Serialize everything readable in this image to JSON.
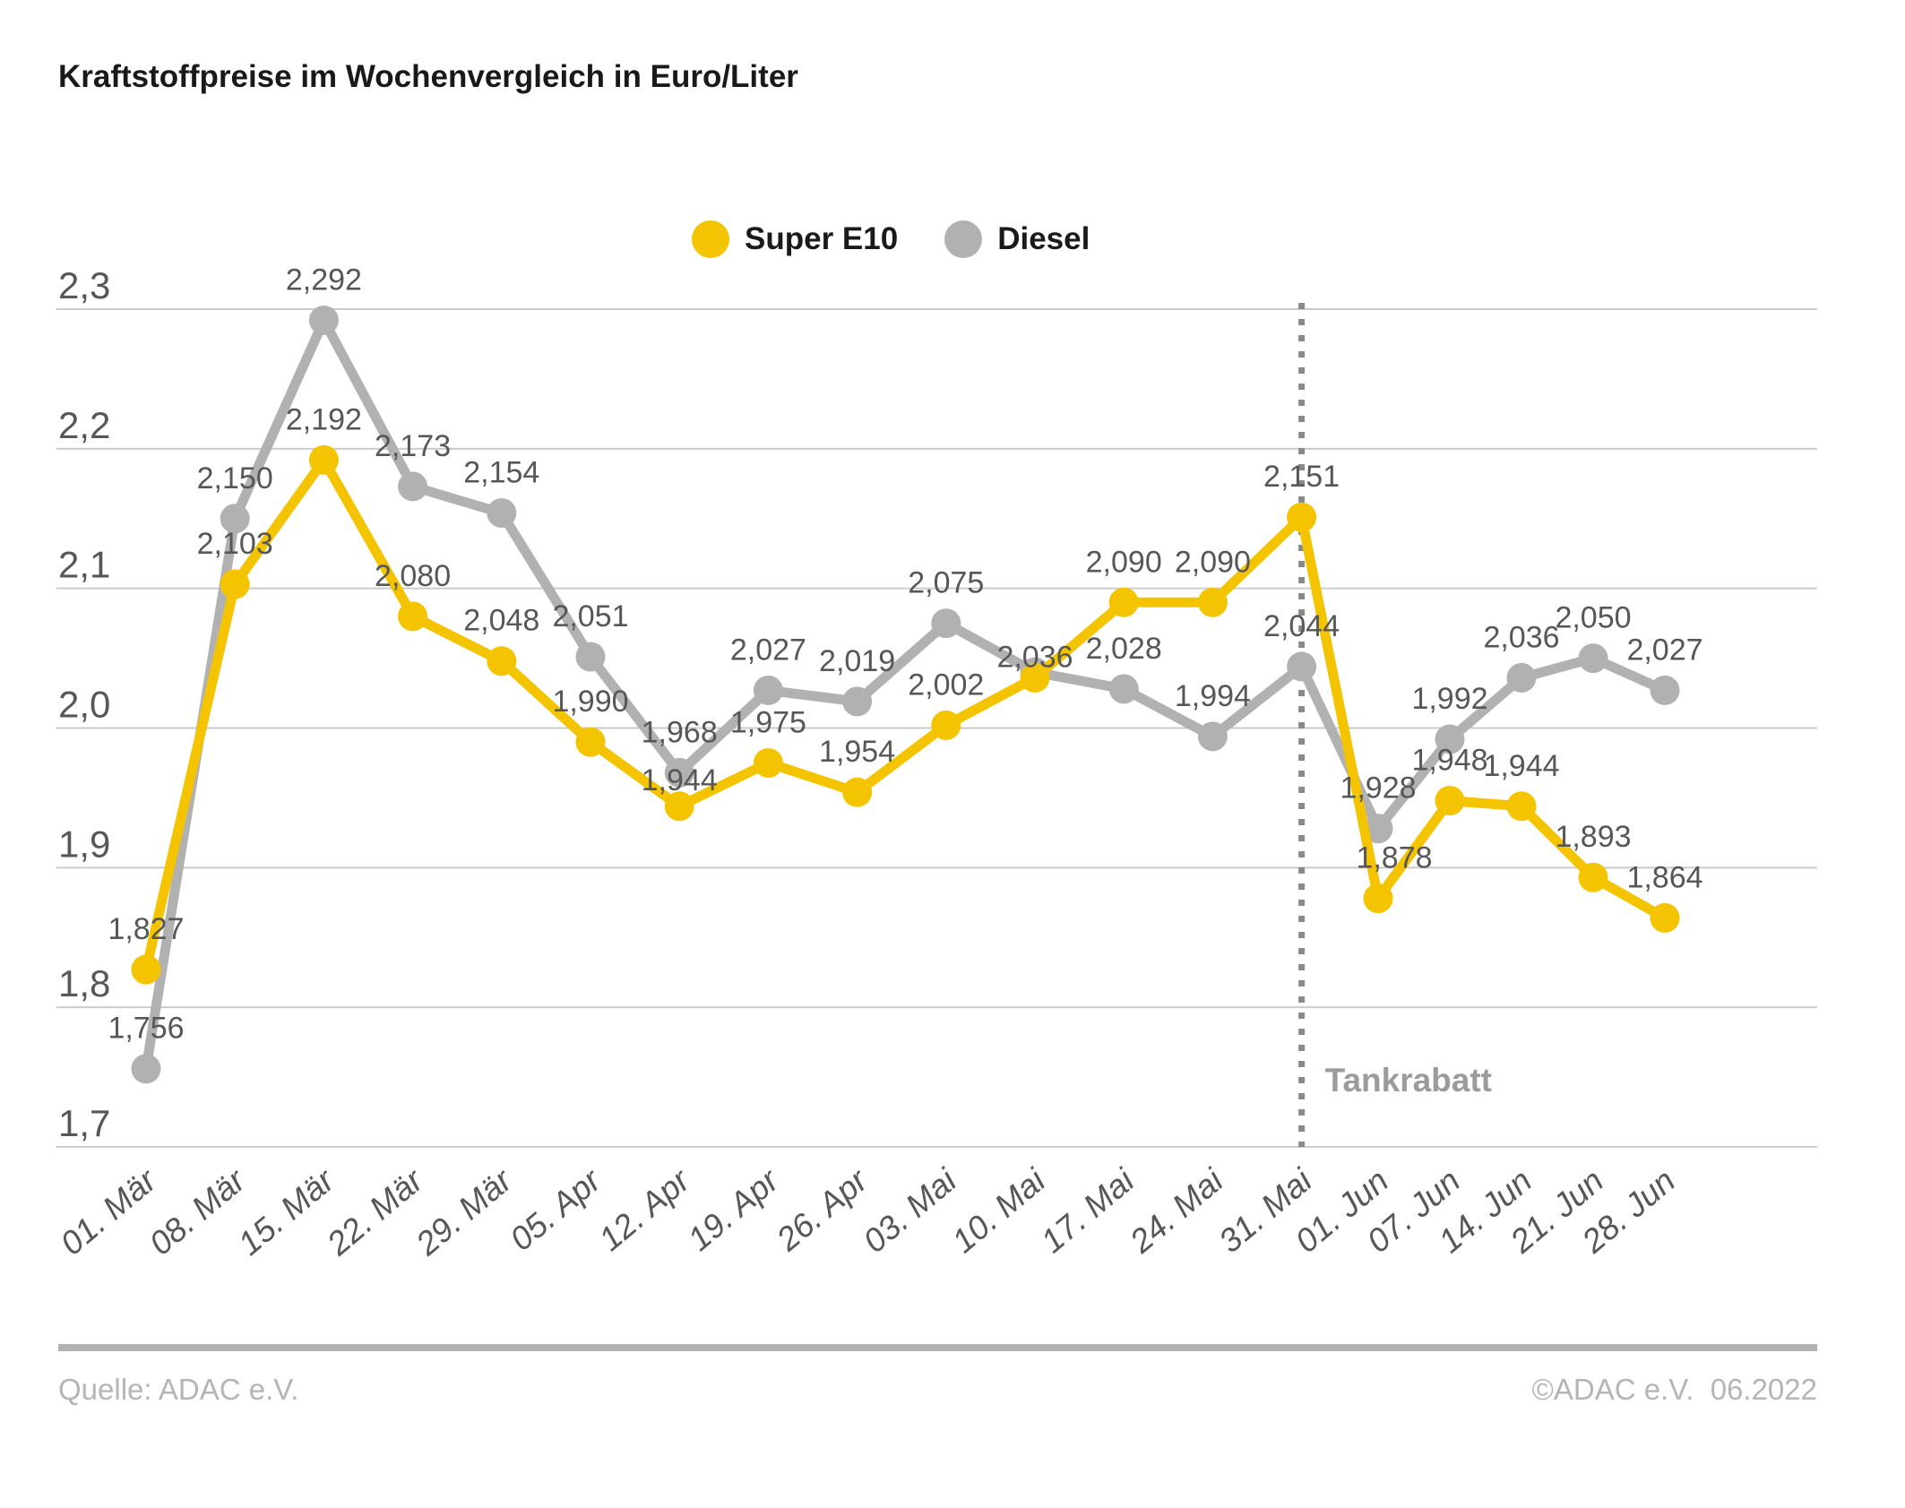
{
  "title": "Kraftstoffpreise im Wochenvergleich in Euro/Liter",
  "legend": {
    "items": [
      {
        "label": "Super E10",
        "color": "#F5C400"
      },
      {
        "label": "Diesel",
        "color": "#B1B1B1"
      }
    ]
  },
  "footer": {
    "source": "Quelle: ADAC e.V.",
    "copyright": "©ADAC e.V.  06.2022"
  },
  "chart_data": {
    "type": "line",
    "title": "Kraftstoffpreise im Wochenvergleich in Euro/Liter",
    "unit": "Euro/Liter",
    "categories": [
      "01. Mär",
      "08. Mär",
      "15. Mär",
      "22. Mär",
      "29. Mär",
      "05. Apr",
      "12. Apr",
      "19. Apr",
      "26. Apr",
      "03. Mai",
      "10. Mai",
      "17. Mai",
      "24. Mai",
      "31. Mai",
      "01. Jun",
      "07. Jun",
      "14. Jun",
      "21. Jun",
      "28. Jun"
    ],
    "series": [
      {
        "name": "Super E10",
        "color": "#F5C400",
        "values": [
          1.827,
          2.103,
          2.192,
          2.08,
          2.048,
          1.99,
          1.944,
          1.975,
          1.954,
          2.002,
          2.036,
          2.09,
          2.09,
          2.151,
          1.878,
          1.948,
          1.944,
          1.893,
          1.864
        ],
        "labels": [
          "1,827",
          "2,103",
          "2,192",
          "2,080",
          "2,048",
          "1,990",
          "1,944",
          "1,975",
          "1,954",
          "2,002",
          "2,036",
          "2,090",
          "2,090",
          "2,151",
          "1,878",
          "1,948",
          "1,944",
          "1,893",
          "1,864"
        ]
      },
      {
        "name": "Diesel",
        "color": "#B1B1B1",
        "values": [
          1.756,
          2.15,
          2.292,
          2.173,
          2.154,
          2.051,
          1.968,
          2.027,
          2.019,
          2.075,
          2.04,
          2.028,
          1.994,
          2.044,
          1.928,
          1.992,
          2.036,
          2.05,
          2.027
        ],
        "labels": [
          "1,756",
          "2,150",
          "2,292",
          "2,173",
          "2,154",
          "2,051",
          "1,968",
          "2,027",
          "2,019",
          "2,075",
          "",
          "2,028",
          "1,994",
          "2,044",
          "1,928",
          "1,992",
          "2,036",
          "2,050",
          "2,027"
        ]
      }
    ],
    "ylim": [
      1.7,
      2.3
    ],
    "yticks": [
      2.3,
      2.2,
      2.1,
      2.0,
      1.9,
      1.8,
      1.7
    ],
    "ytick_labels": [
      "2,3",
      "2,2",
      "2,1",
      "2,0",
      "1,9",
      "1,8",
      "1,7"
    ],
    "grid": "horizontal",
    "legend_position": "top-center",
    "annotation": {
      "label": "Tankrabatt",
      "at_category": "31. Mai"
    },
    "colors": {
      "label_text": "#575756",
      "axis_text": "#575756",
      "gridline": "#cbcbcb",
      "annotation_line": "#8a8a8a",
      "annotation_text": "#9b9b9b"
    }
  }
}
